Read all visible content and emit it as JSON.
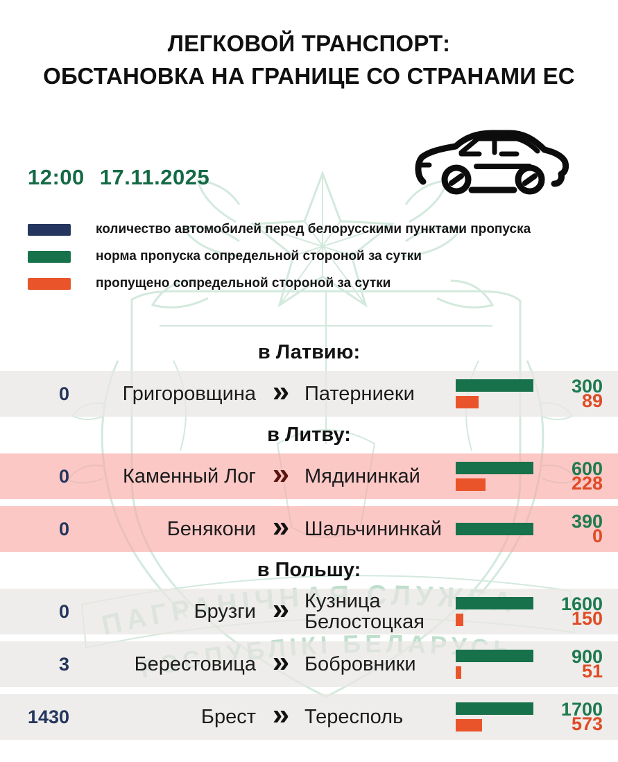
{
  "header": {
    "title_line1": "ЛЕГКОВОЙ ТРАНСПОРТ:",
    "title_line2": "ОБСТАНОВКА НА ГРАНИЦЕ СО СТРАНАМИ ЕС"
  },
  "datetime": {
    "time": "12:00",
    "date": "17.11.2025"
  },
  "legend": {
    "items": [
      {
        "label": "количество автомобилей перед белорусскими пунктами пропуска",
        "color": "#24365e"
      },
      {
        "label": "норма пропуска сопредельной стороной за сутки",
        "color": "#17714a"
      },
      {
        "label": "пропущено сопредельной стороной за сутки",
        "color": "#e9542b"
      }
    ]
  },
  "icons": {
    "car": "car-icon",
    "chevron_glyph": "»"
  },
  "watermark": {
    "line1": "ПАГРАНІЧНАЯ СЛУЖБА",
    "line2": "РЭСПУБЛІКІ БЕЛАРУСЬ",
    "color": "#cfe7da"
  },
  "colors": {
    "navy": "#24365e",
    "green": "#17714a",
    "orange": "#e9542b",
    "date_green": "#156a46",
    "pink_row": "#fbc7c4",
    "gray_row": "#f2f0ee",
    "maroon_chevron": "#5a130e",
    "black_chevron": "#121212"
  },
  "sections": [
    {
      "title": "в Латвию:",
      "rows": [
        {
          "queue": "0",
          "from": "Григоровщина",
          "to_lines": [
            "Патерниеки"
          ],
          "norm": 300,
          "passed": 89,
          "bg": "gray",
          "chevron_color": "#121212"
        }
      ]
    },
    {
      "title": "в Литву:",
      "rows": [
        {
          "queue": "0",
          "from": "Каменный Лог",
          "to_lines": [
            "Мядининкай"
          ],
          "norm": 600,
          "passed": 228,
          "bg": "pink",
          "chevron_color": "#5a130e"
        },
        {
          "queue": "0",
          "from": "Бенякони",
          "to_lines": [
            "Шальчининкай"
          ],
          "norm": 390,
          "passed": 0,
          "bg": "pink",
          "chevron_color": "#121212"
        }
      ]
    },
    {
      "title": "в Польшу:",
      "rows": [
        {
          "queue": "0",
          "from": "Брузги",
          "to_lines": [
            "Кузница",
            "Белостоцкая"
          ],
          "norm": 1600,
          "passed": 150,
          "bg": "gray",
          "chevron_color": "#121212"
        },
        {
          "queue": "3",
          "from": "Берестовица",
          "to_lines": [
            "Бобровники"
          ],
          "norm": 900,
          "passed": 51,
          "bg": "gray",
          "chevron_color": "#121212"
        },
        {
          "queue": "1430",
          "from": "Брест",
          "to_lines": [
            "Тересполь"
          ],
          "norm": 1700,
          "passed": 573,
          "bg": "gray",
          "chevron_color": "#121212"
        }
      ]
    }
  ],
  "chart_data": {
    "type": "bar",
    "orientation": "horizontal",
    "title": "ЛЕГКОВОЙ ТРАНСПОРТ: ОБСТАНОВКА НА ГРАНИЦЕ СО СТРАНАМИ ЕС",
    "as_of": "12:00 17.11.2025",
    "categories": [
      "Григоровщина → Патерниеки (в Латвию)",
      "Каменный Лог → Мядининкай (в Литву)",
      "Бенякони → Шальчининкай (в Литву)",
      "Брузги → Кузница Белостоцкая (в Польшу)",
      "Берестовица → Бобровники (в Польшу)",
      "Брест → Тересполь (в Польшу)"
    ],
    "series": [
      {
        "name": "количество автомобилей перед белорусскими пунктами пропуска",
        "color": "#24365e",
        "values": [
          0,
          0,
          0,
          0,
          3,
          1430
        ]
      },
      {
        "name": "норма пропуска сопредельной стороной за сутки",
        "color": "#17714a",
        "values": [
          300,
          600,
          390,
          1600,
          900,
          1700
        ]
      },
      {
        "name": "пропущено сопредельной стороной за сутки",
        "color": "#e9542b",
        "values": [
          89,
          228,
          0,
          150,
          51,
          573
        ]
      }
    ],
    "legend_position": "top-left",
    "grid": false
  }
}
